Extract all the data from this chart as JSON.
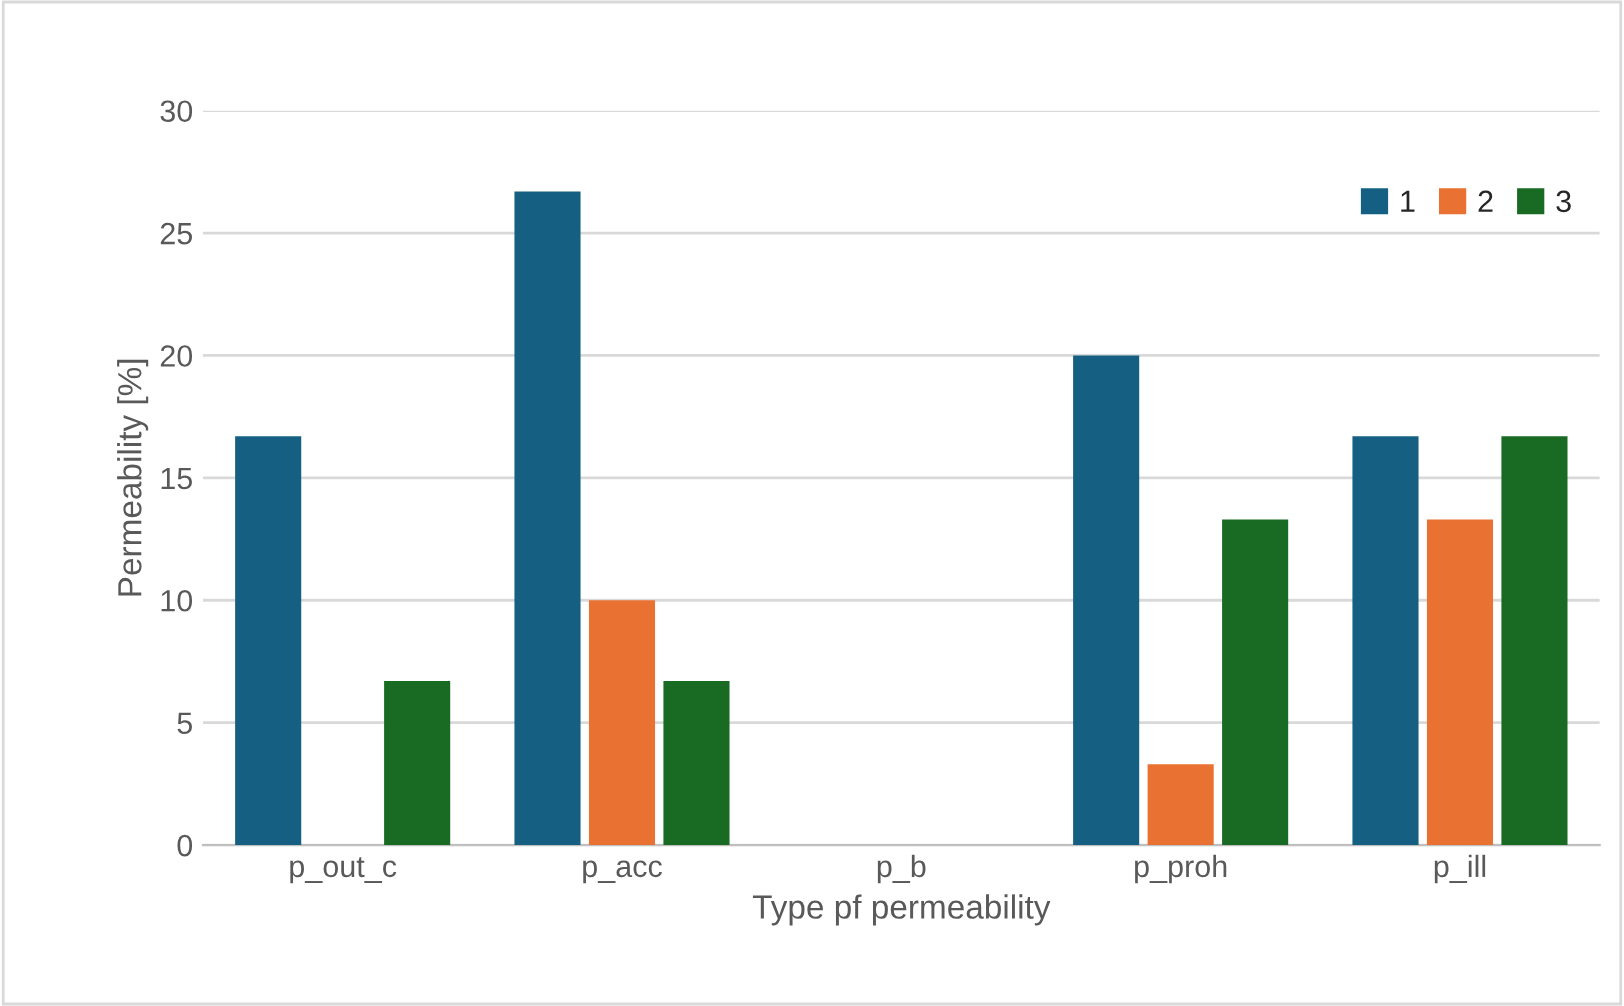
{
  "chart_data": {
    "type": "bar",
    "xlabel": "Type pf permeability",
    "ylabel": "Permeability [%]",
    "categories": [
      "p_out_c",
      "p_acc",
      "p_b",
      "p_proh",
      "p_ill"
    ],
    "series": [
      {
        "name": "1",
        "color": "#156082",
        "values": [
          16.7,
          26.7,
          null,
          20,
          16.7
        ]
      },
      {
        "name": "2",
        "color": "#e97132",
        "values": [
          null,
          10,
          null,
          3.3,
          13.3
        ]
      },
      {
        "name": "3",
        "color": "#196b24",
        "values": [
          6.7,
          6.7,
          null,
          13.3,
          16.7
        ]
      }
    ],
    "ylim": [
      0,
      30
    ],
    "yticks": [
      0,
      5,
      10,
      15,
      20,
      25,
      30
    ],
    "grid": "y",
    "legend": "top right"
  }
}
